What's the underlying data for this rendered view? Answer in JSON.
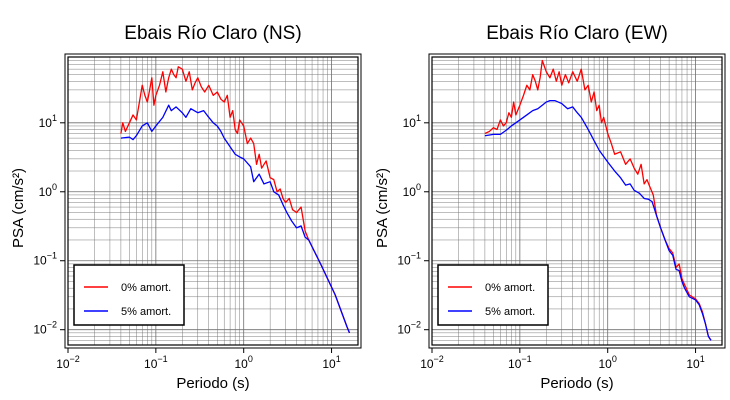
{
  "chart_data": [
    {
      "type": "line",
      "title": "Ebais Río Claro (NS)",
      "xlabel": "Periodo (s)",
      "ylabel": "PSA (cm/s²)",
      "xscale": "log",
      "yscale": "log",
      "xlim": [
        0.01,
        20
      ],
      "ylim": [
        0.006,
        90
      ],
      "xticks": [
        {
          "value": 0.01,
          "base": "10",
          "exp": "−2"
        },
        {
          "value": 0.1,
          "base": "10",
          "exp": "−1"
        },
        {
          "value": 1,
          "base": "10",
          "exp": "0"
        },
        {
          "value": 10,
          "base": "10",
          "exp": "1"
        }
      ],
      "yticks": [
        {
          "value": 0.01,
          "base": "10",
          "exp": "−2"
        },
        {
          "value": 0.1,
          "base": "10",
          "exp": "−1"
        },
        {
          "value": 1,
          "base": "10",
          "exp": "0"
        },
        {
          "value": 10,
          "base": "10",
          "exp": "1"
        }
      ],
      "grid": true,
      "legend_position": "bottom-left",
      "series": [
        {
          "name": "0% amort.",
          "color": "#ff0000",
          "points": [
            [
              0.04,
              7
            ],
            [
              0.042,
              10
            ],
            [
              0.045,
              7.5
            ],
            [
              0.05,
              10
            ],
            [
              0.055,
              13
            ],
            [
              0.06,
              11
            ],
            [
              0.065,
              20
            ],
            [
              0.07,
              35
            ],
            [
              0.075,
              25
            ],
            [
              0.08,
              20
            ],
            [
              0.085,
              30
            ],
            [
              0.09,
              45
            ],
            [
              0.095,
              18
            ],
            [
              0.1,
              25
            ],
            [
              0.11,
              35
            ],
            [
              0.12,
              55
            ],
            [
              0.13,
              28
            ],
            [
              0.14,
              45
            ],
            [
              0.15,
              60
            ],
            [
              0.16,
              50
            ],
            [
              0.17,
              45
            ],
            [
              0.18,
              65
            ],
            [
              0.2,
              60
            ],
            [
              0.22,
              40
            ],
            [
              0.24,
              55
            ],
            [
              0.26,
              30
            ],
            [
              0.28,
              38
            ],
            [
              0.3,
              45
            ],
            [
              0.33,
              33
            ],
            [
              0.36,
              28
            ],
            [
              0.4,
              35
            ],
            [
              0.45,
              25
            ],
            [
              0.5,
              28
            ],
            [
              0.55,
              22
            ],
            [
              0.6,
              20
            ],
            [
              0.65,
              25
            ],
            [
              0.7,
              12
            ],
            [
              0.75,
              15
            ],
            [
              0.8,
              8
            ],
            [
              0.85,
              7
            ],
            [
              0.9,
              11
            ],
            [
              1.0,
              9
            ],
            [
              1.1,
              5
            ],
            [
              1.2,
              6
            ],
            [
              1.3,
              5
            ],
            [
              1.4,
              2.5
            ],
            [
              1.5,
              3.5
            ],
            [
              1.6,
              2.2
            ],
            [
              1.8,
              2.8
            ],
            [
              2.0,
              1.6
            ],
            [
              2.2,
              1.5
            ],
            [
              2.4,
              1.0
            ],
            [
              2.6,
              1.1
            ],
            [
              2.8,
              0.8
            ],
            [
              3.0,
              0.7
            ],
            [
              3.3,
              0.8
            ],
            [
              3.6,
              0.55
            ],
            [
              4.0,
              0.5
            ],
            [
              4.5,
              0.6
            ],
            [
              5.0,
              0.27
            ],
            [
              5.5,
              0.2
            ],
            [
              6.5,
              0.13
            ],
            [
              7.5,
              0.09
            ],
            [
              9.0,
              0.055
            ],
            [
              11.0,
              0.032
            ],
            [
              13.0,
              0.018
            ],
            [
              15.0,
              0.011
            ],
            [
              16.0,
              0.009
            ]
          ]
        },
        {
          "name": "5% amort.",
          "color": "#0000ff",
          "points": [
            [
              0.04,
              6
            ],
            [
              0.05,
              6.2
            ],
            [
              0.055,
              5.7
            ],
            [
              0.06,
              6.5
            ],
            [
              0.07,
              9
            ],
            [
              0.08,
              10
            ],
            [
              0.09,
              7.5
            ],
            [
              0.1,
              9
            ],
            [
              0.12,
              12
            ],
            [
              0.14,
              18
            ],
            [
              0.15,
              15
            ],
            [
              0.17,
              17
            ],
            [
              0.2,
              14
            ],
            [
              0.22,
              12
            ],
            [
              0.25,
              16
            ],
            [
              0.3,
              14
            ],
            [
              0.35,
              15
            ],
            [
              0.4,
              12
            ],
            [
              0.45,
              10
            ],
            [
              0.5,
              9
            ],
            [
              0.55,
              7.5
            ],
            [
              0.6,
              6
            ],
            [
              0.7,
              4.5
            ],
            [
              0.8,
              3.5
            ],
            [
              0.9,
              3.2
            ],
            [
              1.0,
              3
            ],
            [
              1.2,
              2.3
            ],
            [
              1.3,
              1.4
            ],
            [
              1.5,
              1.8
            ],
            [
              1.7,
              1.3
            ],
            [
              2.0,
              1.4
            ],
            [
              2.2,
              1.0
            ],
            [
              2.5,
              0.9
            ],
            [
              2.8,
              0.65
            ],
            [
              3.1,
              0.5
            ],
            [
              3.5,
              0.38
            ],
            [
              4.0,
              0.3
            ],
            [
              4.5,
              0.32
            ],
            [
              5.0,
              0.22
            ],
            [
              5.5,
              0.2
            ],
            [
              6.5,
              0.13
            ],
            [
              7.5,
              0.09
            ],
            [
              9.0,
              0.055
            ],
            [
              11.0,
              0.032
            ],
            [
              13.0,
              0.018
            ],
            [
              15.0,
              0.011
            ],
            [
              16.0,
              0.009
            ]
          ]
        }
      ]
    },
    {
      "type": "line",
      "title": "Ebais Río Claro (EW)",
      "xlabel": "Periodo (s)",
      "ylabel": "PSA (cm/s²)",
      "xscale": "log",
      "yscale": "log",
      "xlim": [
        0.01,
        20
      ],
      "ylim": [
        0.006,
        90
      ],
      "xticks": [
        {
          "value": 0.01,
          "base": "10",
          "exp": "−2"
        },
        {
          "value": 0.1,
          "base": "10",
          "exp": "−1"
        },
        {
          "value": 1,
          "base": "10",
          "exp": "0"
        },
        {
          "value": 10,
          "base": "10",
          "exp": "1"
        }
      ],
      "yticks": [
        {
          "value": 0.01,
          "base": "10",
          "exp": "−2"
        },
        {
          "value": 0.1,
          "base": "10",
          "exp": "−1"
        },
        {
          "value": 1,
          "base": "10",
          "exp": "0"
        },
        {
          "value": 10,
          "base": "10",
          "exp": "1"
        }
      ],
      "grid": true,
      "legend_position": "bottom-left",
      "series": [
        {
          "name": "0% amort.",
          "color": "#ff0000",
          "points": [
            [
              0.04,
              7
            ],
            [
              0.045,
              7.5
            ],
            [
              0.05,
              8.5
            ],
            [
              0.055,
              8
            ],
            [
              0.06,
              11
            ],
            [
              0.065,
              9
            ],
            [
              0.07,
              10
            ],
            [
              0.075,
              14
            ],
            [
              0.08,
              12
            ],
            [
              0.085,
              20
            ],
            [
              0.09,
              13
            ],
            [
              0.1,
              18
            ],
            [
              0.11,
              25
            ],
            [
              0.12,
              35
            ],
            [
              0.13,
              30
            ],
            [
              0.14,
              50
            ],
            [
              0.15,
              40
            ],
            [
              0.16,
              30
            ],
            [
              0.17,
              45
            ],
            [
              0.18,
              80
            ],
            [
              0.2,
              55
            ],
            [
              0.22,
              45
            ],
            [
              0.24,
              60
            ],
            [
              0.26,
              40
            ],
            [
              0.28,
              55
            ],
            [
              0.3,
              35
            ],
            [
              0.33,
              50
            ],
            [
              0.36,
              38
            ],
            [
              0.4,
              55
            ],
            [
              0.45,
              40
            ],
            [
              0.5,
              60
            ],
            [
              0.55,
              30
            ],
            [
              0.6,
              35
            ],
            [
              0.65,
              20
            ],
            [
              0.7,
              28
            ],
            [
              0.75,
              15
            ],
            [
              0.8,
              18
            ],
            [
              0.85,
              10
            ],
            [
              0.9,
              12
            ],
            [
              1.0,
              7
            ],
            [
              1.1,
              5
            ],
            [
              1.2,
              3.5
            ],
            [
              1.4,
              3.8
            ],
            [
              1.6,
              2.5
            ],
            [
              1.8,
              3.0
            ],
            [
              2.0,
              2.2
            ],
            [
              2.2,
              1.8
            ],
            [
              2.4,
              2.5
            ],
            [
              2.6,
              1.3
            ],
            [
              2.8,
              1.5
            ],
            [
              3.0,
              1.2
            ],
            [
              3.3,
              0.9
            ],
            [
              3.6,
              0.45
            ],
            [
              4.0,
              0.3
            ],
            [
              4.5,
              0.2
            ],
            [
              5.0,
              0.15
            ],
            [
              5.5,
              0.13
            ],
            [
              6.0,
              0.08
            ],
            [
              6.5,
              0.09
            ],
            [
              7.0,
              0.055
            ],
            [
              7.5,
              0.045
            ],
            [
              8.5,
              0.032
            ],
            [
              10.0,
              0.028
            ],
            [
              11.0,
              0.024
            ],
            [
              12.0,
              0.018
            ],
            [
              13.0,
              0.012
            ],
            [
              14.0,
              0.008
            ],
            [
              15.0,
              0.007
            ]
          ]
        },
        {
          "name": "5% amort.",
          "color": "#0000ff",
          "points": [
            [
              0.04,
              6.5
            ],
            [
              0.05,
              6.8
            ],
            [
              0.06,
              6.8
            ],
            [
              0.07,
              7.8
            ],
            [
              0.08,
              9
            ],
            [
              0.09,
              10
            ],
            [
              0.1,
              11
            ],
            [
              0.12,
              13
            ],
            [
              0.14,
              15
            ],
            [
              0.16,
              16
            ],
            [
              0.18,
              18
            ],
            [
              0.2,
              20
            ],
            [
              0.22,
              21
            ],
            [
              0.25,
              21
            ],
            [
              0.3,
              19
            ],
            [
              0.35,
              16
            ],
            [
              0.4,
              17
            ],
            [
              0.45,
              14
            ],
            [
              0.5,
              12
            ],
            [
              0.6,
              8
            ],
            [
              0.7,
              5.5
            ],
            [
              0.8,
              4
            ],
            [
              1.0,
              2.7
            ],
            [
              1.2,
              2.0
            ],
            [
              1.4,
              1.6
            ],
            [
              1.6,
              1.25
            ],
            [
              1.8,
              1.3
            ],
            [
              2.0,
              1.05
            ],
            [
              2.3,
              0.95
            ],
            [
              2.6,
              0.8
            ],
            [
              2.9,
              0.78
            ],
            [
              3.2,
              0.72
            ],
            [
              3.6,
              0.45
            ],
            [
              4.0,
              0.3
            ],
            [
              4.5,
              0.2
            ],
            [
              5.0,
              0.14
            ],
            [
              5.5,
              0.12
            ],
            [
              6.0,
              0.075
            ],
            [
              6.5,
              0.072
            ],
            [
              7.0,
              0.05
            ],
            [
              7.5,
              0.04
            ],
            [
              8.5,
              0.03
            ],
            [
              10.0,
              0.027
            ],
            [
              11.0,
              0.023
            ],
            [
              12.0,
              0.017
            ],
            [
              13.0,
              0.012
            ],
            [
              14.0,
              0.008
            ],
            [
              15.0,
              0.007
            ]
          ]
        }
      ]
    }
  ]
}
